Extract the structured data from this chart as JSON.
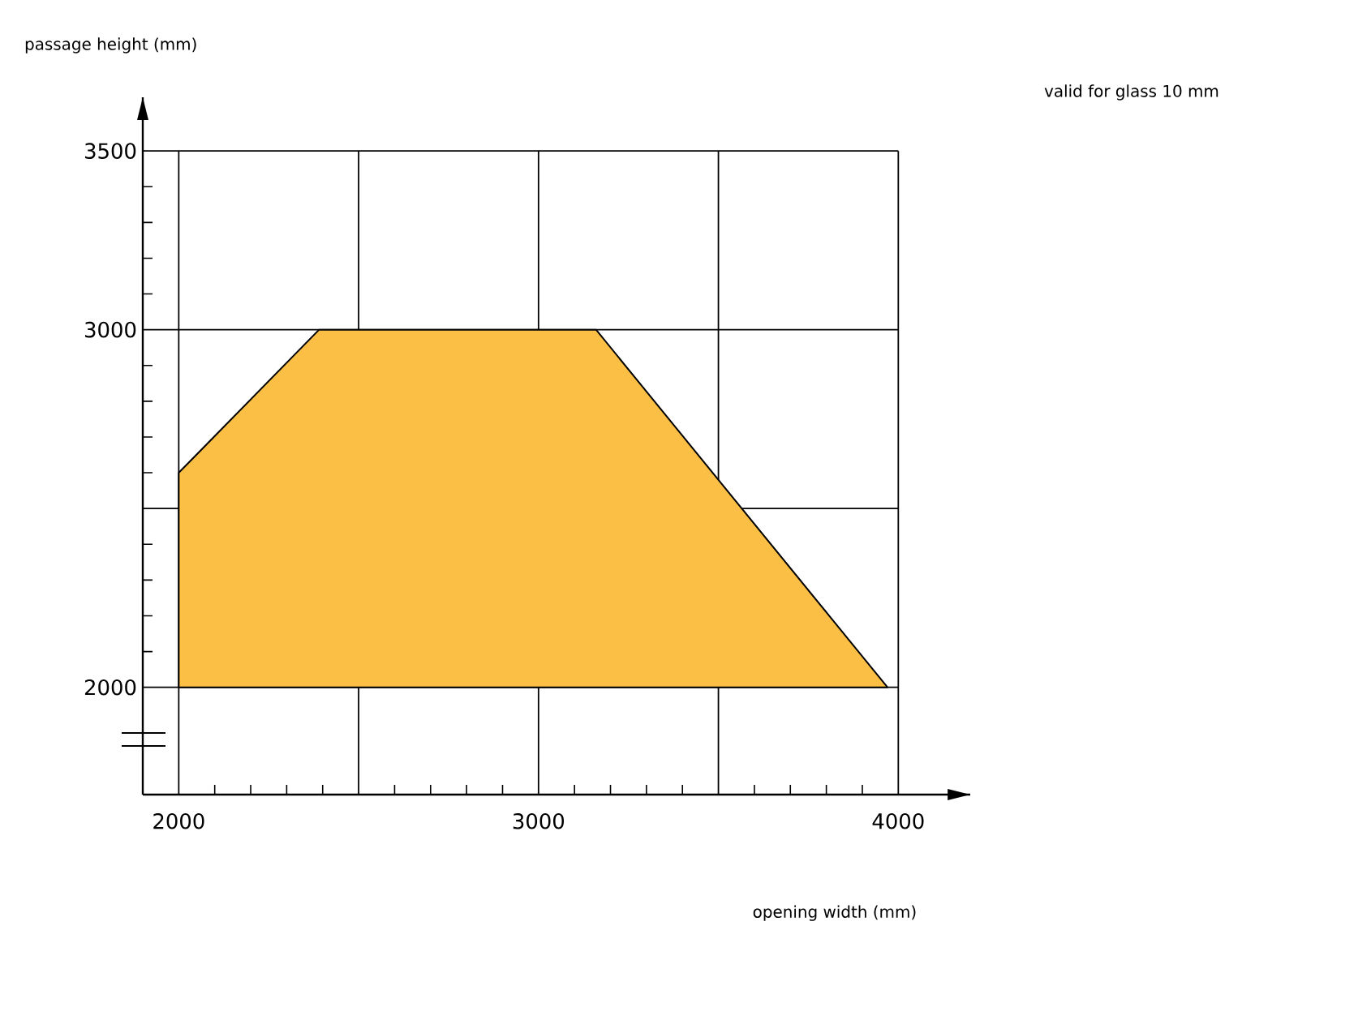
{
  "chart_data": {
    "type": "area",
    "xlabel": "opening width (mm)",
    "ylabel": "passage height (mm)",
    "annotations": [
      "valid for glass 10 mm"
    ],
    "x": [
      2000,
      2000,
      2390,
      3160,
      3970
    ],
    "values": [
      2000,
      2600,
      3000,
      3000,
      2000
    ],
    "color": "#fbbf45",
    "xlim": [
      1900,
      4200
    ],
    "ylim": [
      1700,
      3650
    ],
    "xticks": [
      2000,
      {
        "value": 2500,
        "label": null
      },
      3000,
      {
        "value": 3500,
        "label": null
      },
      4000
    ],
    "yticks": [
      2000,
      {
        "value": 2500,
        "label": null
      },
      3000,
      3500
    ],
    "grid": true
  }
}
